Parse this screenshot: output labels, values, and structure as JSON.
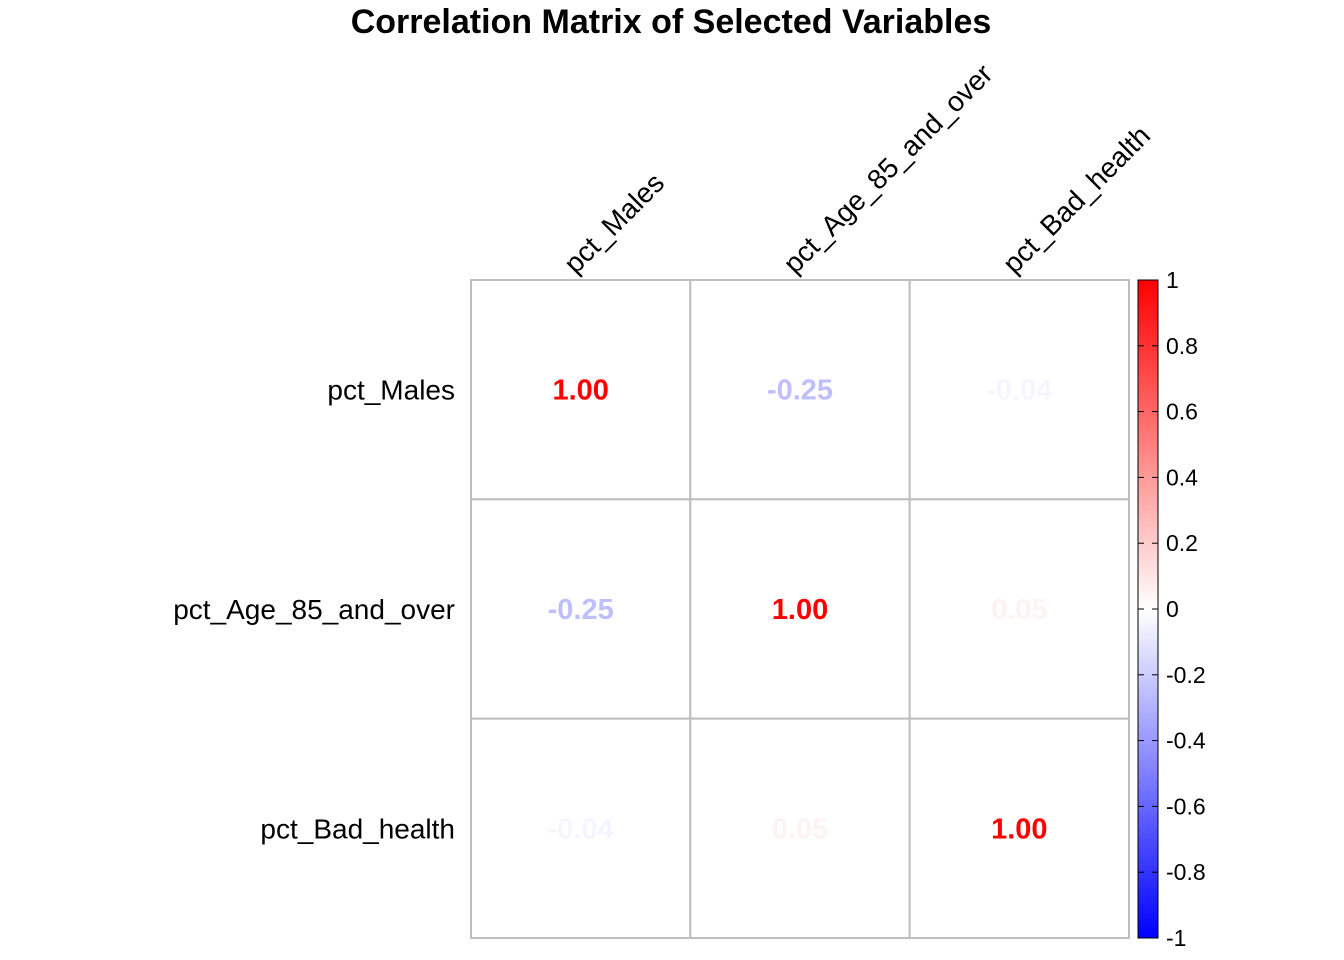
{
  "chart_data": {
    "type": "heatmap",
    "title": "Correlation Matrix of Selected Variables",
    "variables": [
      "pct_Males",
      "pct_Age_85_and_over",
      "pct_Bad_health"
    ],
    "matrix": [
      [
        1.0,
        -0.25,
        -0.04
      ],
      [
        -0.25,
        1.0,
        0.05
      ],
      [
        -0.04,
        0.05,
        1.0
      ]
    ],
    "value_labels": [
      [
        "1.00",
        "-0.25",
        "-0.04"
      ],
      [
        "-0.25",
        "1.00",
        "0.05"
      ],
      [
        "-0.04",
        "0.05",
        "1.00"
      ]
    ],
    "color_scale": {
      "min": -1,
      "max": 1,
      "low_color": "#0000FF",
      "mid_color": "#FFFFFF",
      "high_color": "#FF0000"
    },
    "legend": {
      "placement": "right",
      "ticks": [
        1,
        0.8,
        0.6,
        0.4,
        0.2,
        0,
        -0.2,
        -0.4,
        -0.6,
        -0.8,
        -1
      ],
      "tick_labels": [
        "1",
        "0.8",
        "0.6",
        "0.4",
        "0.2",
        "0",
        "-0.2",
        "-0.4",
        "-0.6",
        "-0.8",
        "-1"
      ]
    },
    "grid": true,
    "grid_color": "#BEBEBE"
  }
}
